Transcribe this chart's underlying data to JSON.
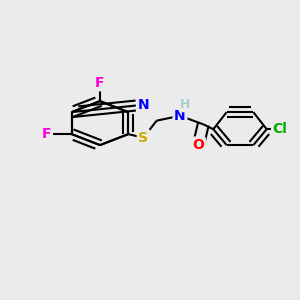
{
  "bg_color": "#ebebeb",
  "bond_color": "#000000",
  "bond_width": 1.5,
  "atom_colors": {
    "F": "#ff00dd",
    "N": "#0000ff",
    "S": "#ccaa00",
    "O": "#ff0000",
    "Cl": "#00aa00",
    "H": "#aacccc",
    "C": "#000000"
  },
  "font_size": 10
}
